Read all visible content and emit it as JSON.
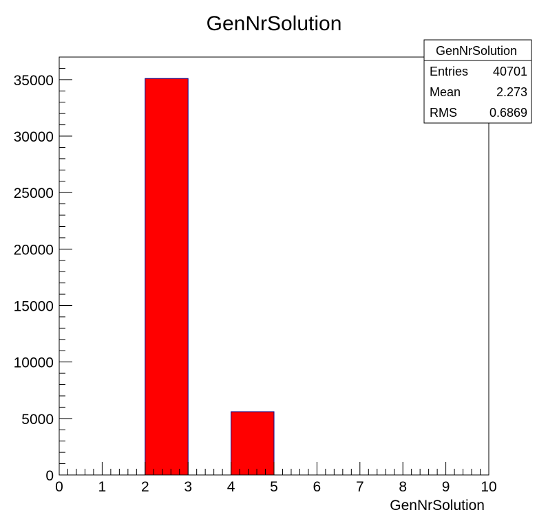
{
  "chart_data": {
    "type": "bar",
    "title": "GenNrSolution",
    "xlabel": "GenNrSolution",
    "ylabel": "",
    "xlim": [
      0,
      10
    ],
    "ylim": [
      0,
      37000
    ],
    "x_ticks": [
      0,
      1,
      2,
      3,
      4,
      5,
      6,
      7,
      8,
      9,
      10
    ],
    "y_ticks": [
      0,
      5000,
      10000,
      15000,
      20000,
      25000,
      30000,
      35000
    ],
    "bins": [
      {
        "low": 2,
        "high": 3,
        "value": 35100
      },
      {
        "low": 4,
        "high": 5,
        "value": 5600
      }
    ],
    "bar_color": "#ff0000",
    "bar_edge_color": "#00008b",
    "grid": false,
    "legend": "none"
  },
  "stats_box": {
    "title": "GenNrSolution",
    "rows": [
      {
        "label": "Entries",
        "value": "40701"
      },
      {
        "label": "Mean",
        "value": "2.273"
      },
      {
        "label": "RMS",
        "value": "0.6869"
      }
    ],
    "placement": "top-right"
  }
}
